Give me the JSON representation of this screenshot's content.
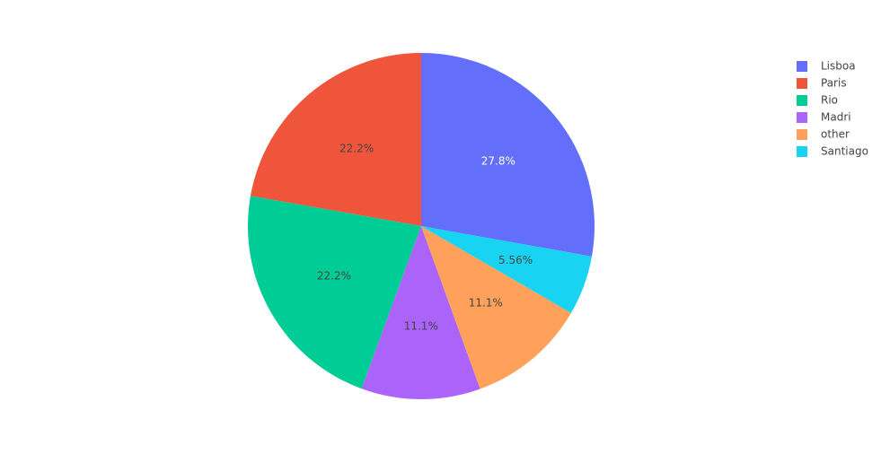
{
  "chart_data": {
    "type": "pie",
    "categories": [
      "Lisboa",
      "Paris",
      "Rio",
      "Madri",
      "other",
      "Santiago"
    ],
    "values": [
      27.8,
      22.2,
      22.2,
      11.1,
      11.1,
      5.56
    ],
    "value_labels": [
      "27.8%",
      "22.2%",
      "22.2%",
      "11.1%",
      "11.1%",
      "5.56%"
    ],
    "colors": [
      "#636efa",
      "#ef553b",
      "#00cc96",
      "#ab63fa",
      "#ffa15a",
      "#19d3f3"
    ],
    "direction": "counterclockwise",
    "legend": "top-right"
  }
}
